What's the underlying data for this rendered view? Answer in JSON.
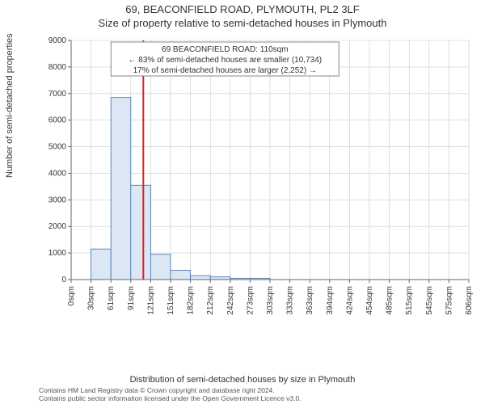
{
  "title": {
    "line1": "69, BEACONFIELD ROAD, PLYMOUTH, PL2 3LF",
    "line2": "Size of property relative to semi-detached houses in Plymouth"
  },
  "chart": {
    "type": "histogram",
    "background_color": "#ffffff",
    "ylabel": "Number of semi-detached properties",
    "xlabel": "Distribution of semi-detached houses by size in Plymouth",
    "ylim": [
      0,
      9000
    ],
    "ytick_step": 1000,
    "yticks": [
      0,
      1000,
      2000,
      3000,
      4000,
      5000,
      6000,
      7000,
      8000,
      9000
    ],
    "xticks": [
      "0sqm",
      "30sqm",
      "61sqm",
      "91sqm",
      "121sqm",
      "151sqm",
      "182sqm",
      "212sqm",
      "242sqm",
      "273sqm",
      "303sqm",
      "333sqm",
      "363sqm",
      "394sqm",
      "424sqm",
      "454sqm",
      "485sqm",
      "515sqm",
      "545sqm",
      "575sqm",
      "606sqm"
    ],
    "bar_values": [
      0,
      1150,
      6850,
      3550,
      950,
      350,
      150,
      100,
      50,
      50,
      0,
      0,
      0,
      0,
      0,
      0,
      0,
      0,
      0,
      0
    ],
    "bar_fill": "#dbe7f5",
    "bar_stroke": "#3e6faa",
    "bar_stroke_width": 0.8,
    "grid_color": "#c9c9c9",
    "axis_color": "#666666",
    "reference_line": {
      "x_value": 110,
      "x_max": 606,
      "color": "#d62222",
      "width": 2
    },
    "annotation": {
      "line1": "69 BEACONFIELD ROAD: 110sqm",
      "line2": "← 83% of semi-detached houses are smaller (10,734)",
      "line3": "17% of semi-detached houses are larger (2,252) →",
      "box_stroke": "#888888",
      "box_fill": "#ffffff",
      "font_size": 10
    }
  },
  "footer": {
    "line1": "Contains HM Land Registry data © Crown copyright and database right 2024.",
    "line2": "Contains public sector information licensed under the Open Government Licence v3.0."
  }
}
